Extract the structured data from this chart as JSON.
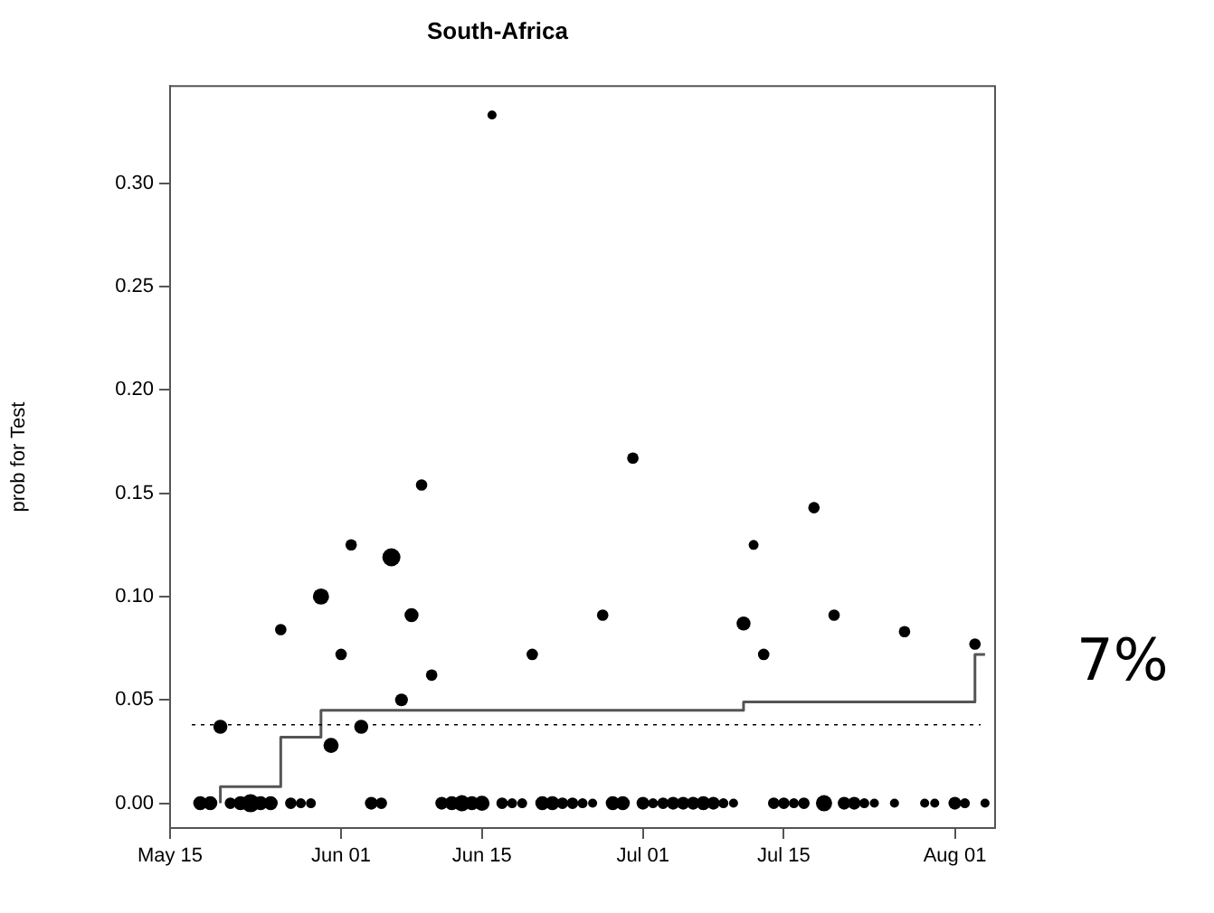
{
  "chart_data": {
    "type": "bubble",
    "title": "South-Africa",
    "ylabel": "prob for Test",
    "xlim": [
      "--05-15",
      "--08-05"
    ],
    "xticks": [
      {
        "value": "--05-15",
        "label": "May 15"
      },
      {
        "value": "--06-01",
        "label": "Jun 01"
      },
      {
        "value": "--06-15",
        "label": "Jun 15"
      },
      {
        "value": "--07-01",
        "label": "Jul 01"
      },
      {
        "value": "--07-15",
        "label": "Jul 15"
      },
      {
        "value": "--08-01",
        "label": "Aug 01"
      }
    ],
    "ylim": [
      -0.012,
      0.347
    ],
    "yticks": [
      {
        "value": 0,
        "label": "0.00"
      },
      {
        "value": 0.05,
        "label": "0.05"
      },
      {
        "value": 0.1,
        "label": "0.10"
      },
      {
        "value": 0.15,
        "label": "0.15"
      },
      {
        "value": 0.2,
        "label": "0.20"
      },
      {
        "value": 0.25,
        "label": "0.25"
      },
      {
        "value": 0.3,
        "label": "0.30"
      }
    ],
    "grid": false,
    "legend": false,
    "marker": "circle",
    "series": [
      {
        "color": "#000000",
        "x": [
          "--05-18",
          "--05-19",
          "--05-20",
          "--05-21",
          "--05-22",
          "--05-23",
          "--05-24",
          "--05-25",
          "--05-26",
          "--05-27",
          "--05-28",
          "--05-29",
          "--05-30",
          "--05-31",
          "--06-01",
          "--06-02",
          "--06-03",
          "--06-04",
          "--06-05",
          "--06-06",
          "--06-07",
          "--06-08",
          "--06-09",
          "--06-10",
          "--06-11",
          "--06-12",
          "--06-13",
          "--06-14",
          "--06-15",
          "--06-16",
          "--06-17",
          "--06-18",
          "--06-19",
          "--06-20",
          "--06-21",
          "--06-22",
          "--06-23",
          "--06-24",
          "--06-25",
          "--06-26",
          "--06-27",
          "--06-28",
          "--06-29",
          "--06-30",
          "--07-01",
          "--07-02",
          "--07-03",
          "--07-04",
          "--07-05",
          "--07-06",
          "--07-07",
          "--07-08",
          "--07-09",
          "--07-10",
          "--07-11",
          "--07-12",
          "--07-13",
          "--07-14",
          "--07-15",
          "--07-16",
          "--07-17",
          "--07-18",
          "--07-19",
          "--07-20",
          "--07-21",
          "--07-22",
          "--07-23",
          "--07-24",
          "--07-26",
          "--07-27",
          "--07-29",
          "--07-30",
          "--08-01",
          "--08-02",
          "--08-03",
          "--08-04"
        ],
        "values": [
          0,
          0,
          0.037,
          0,
          0,
          0,
          0,
          0,
          0.084,
          0,
          0,
          0,
          0.1,
          0.028,
          0.072,
          0.125,
          0.037,
          0,
          0,
          0.119,
          0.05,
          0.091,
          0.154,
          0.062,
          0,
          0,
          0,
          0,
          0,
          0.333,
          0,
          0,
          0,
          0.072,
          0,
          0,
          0,
          0,
          0,
          0,
          0.091,
          0,
          0,
          0.167,
          0,
          0,
          0,
          0,
          0,
          0,
          0,
          0,
          0,
          0,
          0.087,
          0.125,
          0.072,
          0,
          0,
          0,
          0,
          0.143,
          0,
          0.091,
          0,
          0,
          0,
          0,
          0,
          0.083,
          0,
          0,
          0,
          0,
          0.077,
          0
        ],
        "sizes": [
          0.6,
          0.6,
          0.6,
          0.4,
          0.6,
          1,
          0.6,
          0.6,
          0.4,
          0.4,
          0.3,
          0.3,
          0.8,
          0.7,
          0.4,
          0.4,
          0.6,
          0.5,
          0.4,
          1,
          0.5,
          0.6,
          0.4,
          0.4,
          0.5,
          0.6,
          0.8,
          0.6,
          0.7,
          0.25,
          0.4,
          0.3,
          0.3,
          0.4,
          0.6,
          0.6,
          0.4,
          0.4,
          0.3,
          0.25,
          0.4,
          0.6,
          0.6,
          0.4,
          0.5,
          0.3,
          0.4,
          0.5,
          0.5,
          0.5,
          0.6,
          0.5,
          0.3,
          0.25,
          0.6,
          0.3,
          0.4,
          0.4,
          0.4,
          0.3,
          0.4,
          0.4,
          0.8,
          0.4,
          0.5,
          0.5,
          0.3,
          0.25,
          0.25,
          0.4,
          0.25,
          0.25,
          0.5,
          0.3,
          0.4,
          0.25
        ]
      },
      {
        "type": "step",
        "marker": "none",
        "color": "#555555",
        "x": [
          "--05-20",
          "--05-20",
          "--05-26",
          "--05-30",
          "--07-11",
          "--08-03",
          "--08-04"
        ],
        "values": [
          0,
          0.008,
          0.032,
          0.045,
          0.049,
          0.072,
          0.072
        ]
      }
    ],
    "ref_lines": [
      {
        "axis": "y",
        "value": 0.038,
        "color": "#000000",
        "line_style": "dotted"
      }
    ],
    "annotations": [
      "7%"
    ]
  }
}
